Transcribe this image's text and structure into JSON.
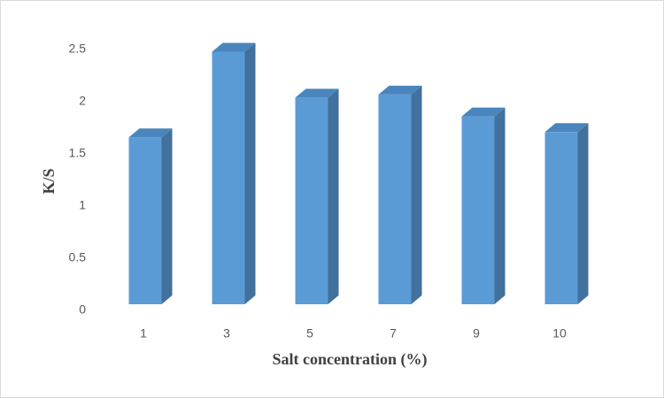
{
  "chart_data": {
    "type": "bar3d",
    "x_label": "Salt concentration (%)",
    "y_label": "K/S",
    "categories": [
      "1",
      "3",
      "5",
      "7",
      "9",
      "10"
    ],
    "values": [
      1.6,
      2.42,
      1.98,
      2.01,
      1.8,
      1.65
    ],
    "color": "#5b9bd5",
    "ylim": [
      0,
      2.5
    ],
    "yticks": [
      0,
      0.5,
      1,
      1.5,
      2,
      2.5
    ],
    "grid": false
  }
}
